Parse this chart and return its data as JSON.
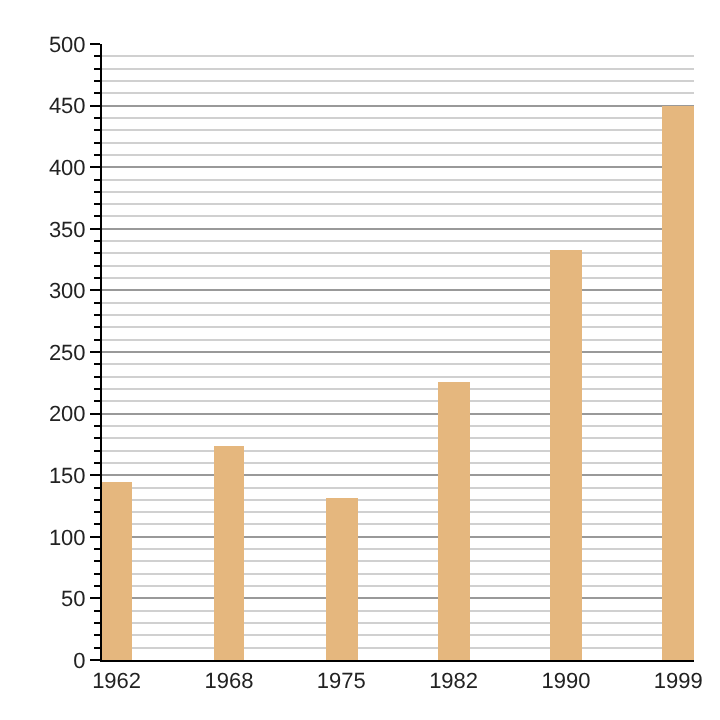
{
  "chart_data": {
    "type": "bar",
    "categories": [
      "1962",
      "1968",
      "1975",
      "1982",
      "1990",
      "1999"
    ],
    "values": [
      144,
      173,
      131,
      226,
      333,
      450
    ],
    "color": "#e5b77e",
    "ylim": [
      0,
      500
    ],
    "yticks": [
      0,
      {
        "value": 10,
        "label": null
      },
      {
        "value": 20,
        "label": null
      },
      {
        "value": 30,
        "label": null
      },
      {
        "value": 40,
        "label": null
      },
      50,
      {
        "value": 60,
        "label": null
      },
      {
        "value": 70,
        "label": null
      },
      {
        "value": 80,
        "label": null
      },
      {
        "value": 90,
        "label": null
      },
      100,
      {
        "value": 110,
        "label": null
      },
      {
        "value": 120,
        "label": null
      },
      {
        "value": 130,
        "label": null
      },
      {
        "value": 140,
        "label": null
      },
      150,
      {
        "value": 160,
        "label": null
      },
      {
        "value": 170,
        "label": null
      },
      {
        "value": 180,
        "label": null
      },
      {
        "value": 190,
        "label": null
      },
      200,
      {
        "value": 210,
        "label": null
      },
      {
        "value": 220,
        "label": null
      },
      {
        "value": 230,
        "label": null
      },
      {
        "value": 240,
        "label": null
      },
      250,
      {
        "value": 260,
        "label": null
      },
      {
        "value": 270,
        "label": null
      },
      {
        "value": 280,
        "label": null
      },
      {
        "value": 290,
        "label": null
      },
      300,
      {
        "value": 310,
        "label": null
      },
      {
        "value": 320,
        "label": null
      },
      {
        "value": 330,
        "label": null
      },
      {
        "value": 340,
        "label": null
      },
      350,
      {
        "value": 360,
        "label": null
      },
      {
        "value": 370,
        "label": null
      },
      {
        "value": 380,
        "label": null
      },
      {
        "value": 390,
        "label": null
      },
      400,
      {
        "value": 410,
        "label": null
      },
      {
        "value": 420,
        "label": null
      },
      {
        "value": 430,
        "label": null
      },
      {
        "value": 440,
        "label": null
      },
      450,
      {
        "value": 460,
        "label": null
      },
      {
        "value": 470,
        "label": null
      },
      {
        "value": 480,
        "label": null
      },
      {
        "value": 490,
        "label": null
      },
      500
    ],
    "grid": "y"
  }
}
